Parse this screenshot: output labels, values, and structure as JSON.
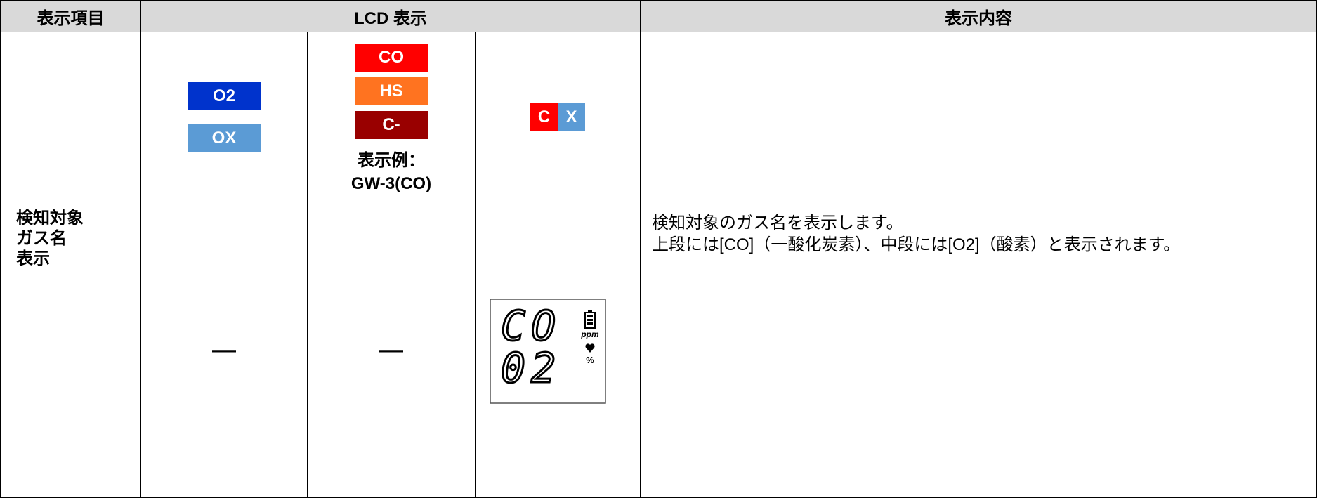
{
  "header": [
    "表示項目",
    "LCD 表示",
    "表示内容"
  ],
  "row1": {
    "col2": [
      "O2",
      "OX"
    ],
    "col3": [
      "CO",
      "HS",
      "C-"
    ],
    "col3_note": [
      "表示例：",
      "GW-3(CO)"
    ],
    "col4": [
      "C",
      "X"
    ]
  },
  "row2": {
    "item": [
      "検知対象",
      "ガス名",
      "表示"
    ],
    "col2": "—",
    "col3": "—",
    "lcd": {
      "top": "CO",
      "middle": "02",
      "unit_ppm": "ppm",
      "unit_pct": "%"
    },
    "content": [
      "検知対象のガス名を表示します。",
      "上段には[CO]（一酸化炭素）、中段には[O2]（酸素）と表示されます。"
    ]
  }
}
